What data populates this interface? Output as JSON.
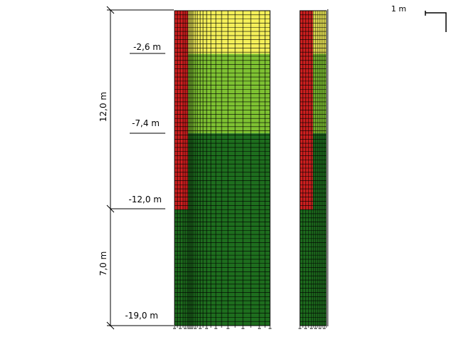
{
  "scale": {
    "label": "1 m"
  },
  "dimensions": {
    "upper": {
      "label": "12,0 m",
      "value_m": 12.0
    },
    "lower": {
      "label": "7,0 m",
      "value_m": 7.0
    }
  },
  "levels": [
    {
      "label": "-2,6 m",
      "depth_m": -2.6
    },
    {
      "label": "-7,4 m",
      "depth_m": -7.4
    },
    {
      "label": "-12,0 m",
      "depth_m": -12.0
    },
    {
      "label": "-19,0 m",
      "depth_m": -19.0
    }
  ],
  "layers": [
    {
      "name": "layer-1",
      "top_m": 0.0,
      "bottom_m": -2.6,
      "color": "#f5f05a"
    },
    {
      "name": "layer-2",
      "top_m": -2.6,
      "bottom_m": -7.4,
      "color": "#7ec232"
    },
    {
      "name": "layer-3",
      "top_m": -7.4,
      "bottom_m": -19.0,
      "color": "#1e6e1e"
    }
  ],
  "wall": {
    "color": "#d42020",
    "bottom_m": -12.0
  }
}
